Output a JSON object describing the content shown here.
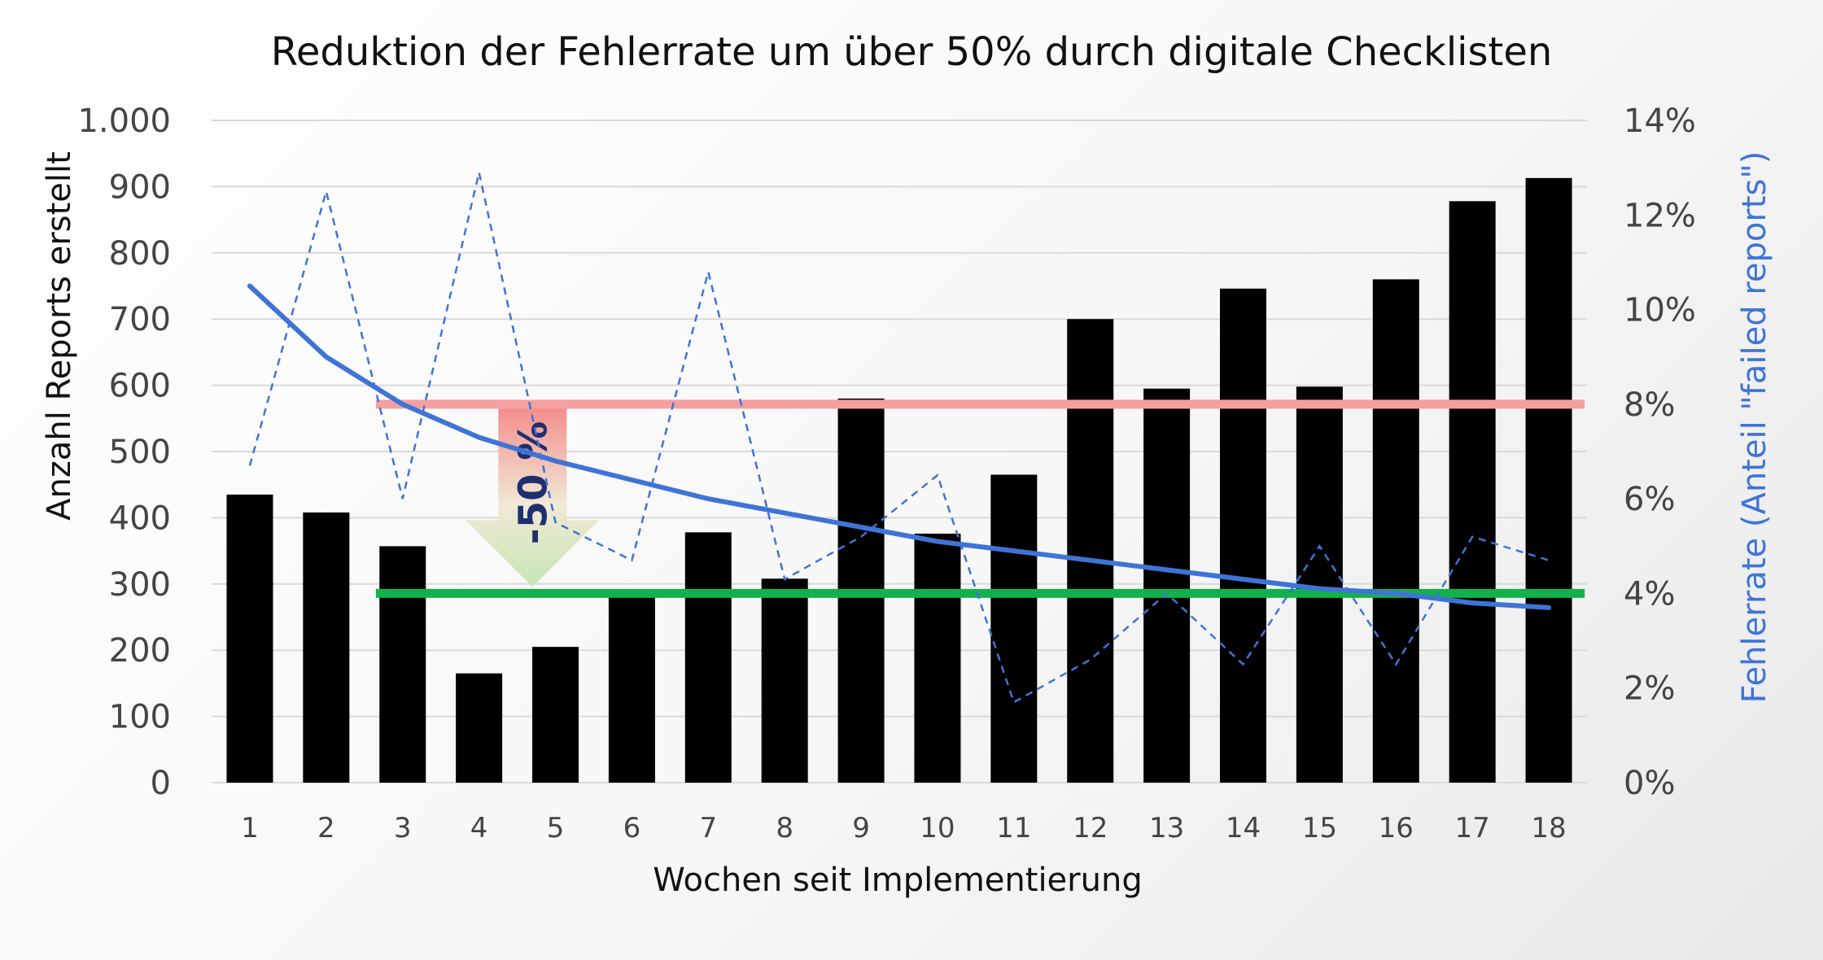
{
  "chart_data": {
    "type": "bar",
    "title": "Reduktion der Fehlerrate um über 50% durch digitale Checklisten",
    "xlabel": "Wochen seit Implementierung",
    "ylabel": "Anzahl Reports erstellt",
    "ylabel_right": "Fehlerrate (Anteil \"failed reports\")",
    "categories": [
      "1",
      "2",
      "3",
      "4",
      "5",
      "6",
      "7",
      "8",
      "9",
      "10",
      "11",
      "12",
      "13",
      "14",
      "15",
      "16",
      "17",
      "18"
    ],
    "series": [
      {
        "type": "bar",
        "axis": "left",
        "values": [
          435,
          408,
          357,
          165,
          205,
          290,
          378,
          308,
          580,
          376,
          465,
          700,
          595,
          746,
          598,
          760,
          878,
          913
        ],
        "color": "#000000"
      },
      {
        "type": "line",
        "style": "dashed",
        "axis": "right",
        "values": [
          0.067,
          0.125,
          0.06,
          0.129,
          0.055,
          0.047,
          0.108,
          0.043,
          0.052,
          0.065,
          0.017,
          0.026,
          0.04,
          0.025,
          0.05,
          0.025,
          0.052,
          0.047
        ],
        "color": "#3f74d6"
      },
      {
        "type": "line",
        "style": "trend",
        "axis": "right",
        "values": [
          0.105,
          0.09,
          0.08,
          0.073,
          0.068,
          0.064,
          0.06,
          0.057,
          0.054,
          0.051,
          0.049,
          0.047,
          0.045,
          0.043,
          0.041,
          0.04,
          0.038,
          0.037
        ],
        "color": "#3f74d6"
      }
    ],
    "reference_lines": [
      {
        "axis": "right",
        "value": 0.08,
        "from_category": "3",
        "to_category": "18",
        "color": "#f4a0a0"
      },
      {
        "axis": "right",
        "value": 0.04,
        "from_category": "3",
        "to_category": "18",
        "color": "#14b14b"
      }
    ],
    "annotation": {
      "text": "-50 %",
      "from_value": 0.08,
      "to_value": 0.04,
      "at_category": "4.7"
    },
    "y_left": {
      "min": 0,
      "max": 1000,
      "ticks": [
        0,
        100,
        200,
        300,
        400,
        500,
        600,
        700,
        800,
        900,
        1000
      ],
      "tick_labels": [
        "0",
        "100",
        "200",
        "300",
        "400",
        "500",
        "600",
        "700",
        "800",
        "900",
        "1.000"
      ]
    },
    "y_right": {
      "min": 0,
      "max": 0.14,
      "ticks": [
        0,
        0.02,
        0.04,
        0.06,
        0.08,
        0.1,
        0.12,
        0.14
      ],
      "tick_labels": [
        "0%",
        "2%",
        "4%",
        "6%",
        "8%",
        "10%",
        "12%",
        "14%"
      ]
    },
    "grid": true,
    "legend": "none"
  }
}
